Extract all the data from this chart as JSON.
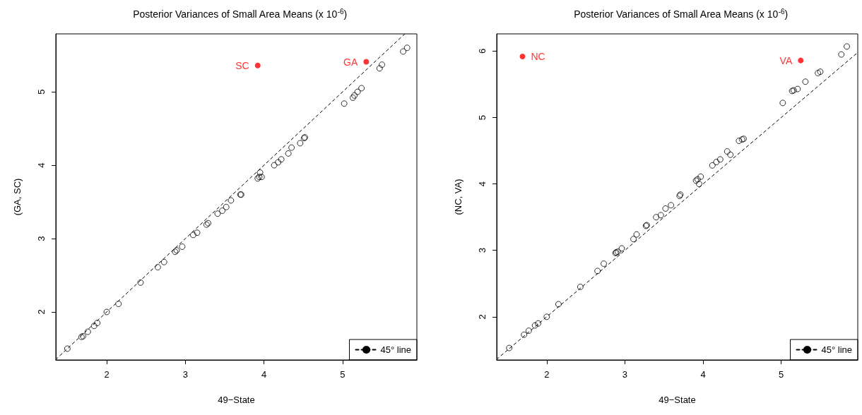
{
  "chart_data": [
    {
      "type": "scatter",
      "title": "Posterior Variances of Small Area Means (x 10$^{-6}$)",
      "xlabel": "49−State",
      "ylabel": "(GA, SC)",
      "xlim": [
        1.353,
        5.944
      ],
      "ylim": [
        1.346,
        5.79
      ],
      "xticks": [
        2,
        3,
        4,
        5
      ],
      "yticks": [
        2,
        3,
        4,
        5
      ],
      "grid": false,
      "legend": "bottom right",
      "marker": "circle",
      "series": [
        {
          "color": "#000000",
          "x": [
            1.5,
            1.68,
            1.7,
            1.76,
            1.84,
            1.88,
            2.0,
            2.15,
            2.43,
            2.65,
            2.73,
            2.87,
            2.89,
            2.96,
            3.1,
            3.15,
            3.27,
            3.29,
            3.41,
            3.47,
            3.52,
            3.58,
            3.7,
            3.71,
            3.92,
            3.94,
            3.95,
            3.97,
            4.13,
            4.18,
            4.22,
            4.31,
            4.35,
            4.46,
            4.51,
            4.52,
            5.02,
            5.13,
            5.15,
            5.19,
            5.24,
            5.47,
            5.5,
            5.77,
            5.82
          ],
          "values": [
            1.5,
            1.66,
            1.67,
            1.73,
            1.81,
            1.85,
            2.0,
            2.11,
            2.4,
            2.61,
            2.68,
            2.82,
            2.84,
            2.89,
            3.05,
            3.08,
            3.19,
            3.21,
            3.34,
            3.38,
            3.43,
            3.52,
            3.6,
            3.6,
            3.82,
            3.84,
            3.9,
            3.84,
            4.0,
            4.04,
            4.08,
            4.16,
            4.24,
            4.3,
            4.37,
            4.38,
            4.84,
            4.92,
            4.95,
            5.0,
            5.05,
            5.32,
            5.37,
            5.55,
            5.6
          ]
        },
        {
          "color": "#ff0000",
          "x": [
            3.92,
            5.3
          ],
          "values": [
            5.36,
            5.41
          ],
          "value_labels": [
            "SC",
            "GA"
          ]
        },
        {
          "type": "line",
          "name": "45° line",
          "color": "#000000",
          "line_style": "dashed",
          "marker": "none",
          "x": [
            1.353,
            5.79
          ],
          "values": [
            1.353,
            5.79
          ]
        }
      ]
    },
    {
      "type": "scatter",
      "title": "Posterior Variances of Small Area Means (x 10$^{-6}$)",
      "xlabel": "49−State",
      "ylabel": "(NC, VA)",
      "xlim": [
        1.36,
        5.98
      ],
      "ylim": [
        1.35,
        6.26
      ],
      "xticks": [
        2,
        3,
        4,
        5
      ],
      "yticks": [
        2,
        3,
        4,
        5,
        6
      ],
      "grid": false,
      "legend": "bottom right",
      "marker": "circle",
      "series": [
        {
          "color": "#000000",
          "x": [
            1.52,
            1.71,
            1.77,
            1.85,
            1.89,
            2.0,
            2.15,
            2.43,
            2.65,
            2.73,
            2.88,
            2.89,
            2.91,
            2.96,
            3.11,
            3.15,
            3.27,
            3.28,
            3.4,
            3.46,
            3.52,
            3.59,
            3.7,
            3.71,
            3.91,
            3.93,
            3.95,
            3.97,
            4.12,
            4.17,
            4.22,
            4.31,
            4.35,
            4.46,
            4.5,
            4.52,
            5.02,
            5.14,
            5.16,
            5.21,
            5.31,
            5.47,
            5.5,
            5.77,
            5.84
          ],
          "values": [
            1.53,
            1.73,
            1.79,
            1.87,
            1.9,
            2.0,
            2.19,
            2.45,
            2.69,
            2.8,
            2.96,
            2.97,
            2.98,
            3.03,
            3.17,
            3.24,
            3.37,
            3.38,
            3.5,
            3.53,
            3.63,
            3.68,
            3.82,
            3.84,
            4.05,
            4.07,
            4.0,
            4.11,
            4.28,
            4.33,
            4.37,
            4.49,
            4.44,
            4.65,
            4.67,
            4.68,
            5.22,
            5.4,
            5.41,
            5.43,
            5.54,
            5.67,
            5.69,
            5.95,
            6.07
          ]
        },
        {
          "color": "#ff0000",
          "x": [
            1.69,
            5.25
          ],
          "values": [
            5.92,
            5.86
          ],
          "value_labels": [
            "NC",
            "VA"
          ]
        },
        {
          "type": "line",
          "name": "45° line",
          "color": "#000000",
          "line_style": "dashed",
          "marker": "none",
          "x": [
            1.36,
            5.98
          ],
          "values": [
            1.36,
            5.98
          ]
        }
      ]
    }
  ]
}
